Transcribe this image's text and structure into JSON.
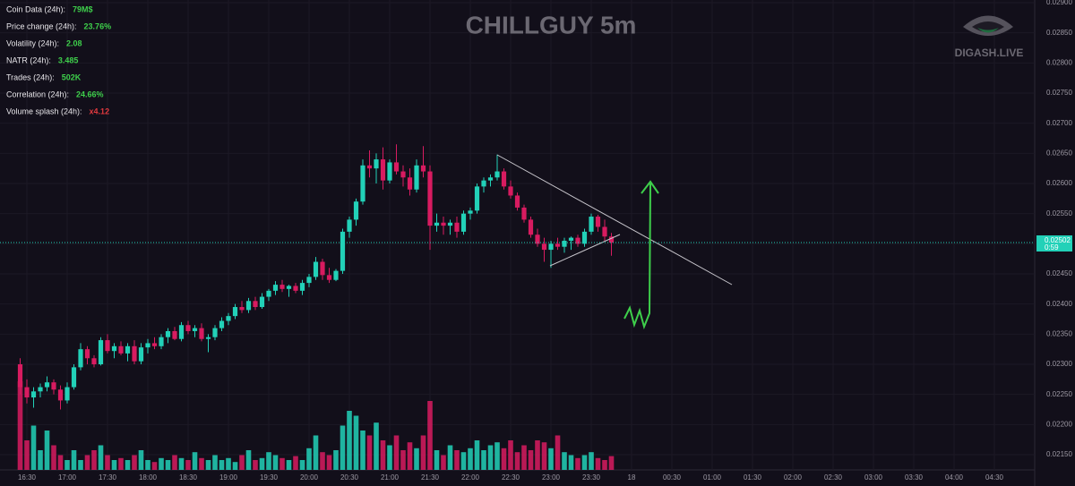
{
  "chart_data": {
    "type": "candlestick",
    "title": "CHILLGUY 5m",
    "brand": "DIGASH.LIVE",
    "stats": [
      {
        "label": "Coin Data (24h):",
        "value": "79M$",
        "color": "#3ecf4b"
      },
      {
        "label": "Price change (24h):",
        "value": "23.76%",
        "color": "#3ecf4b"
      },
      {
        "label": "Volatility (24h):",
        "value": "2.08",
        "color": "#3ecf4b"
      },
      {
        "label": "NATR (24h):",
        "value": "3.485",
        "color": "#3ecf4b"
      },
      {
        "label": "Trades (24h):",
        "value": "502K",
        "color": "#3ecf4b"
      },
      {
        "label": "Correlation (24h):",
        "value": "24.66%",
        "color": "#3ecf4b"
      },
      {
        "label": "Volume splash (24h):",
        "value": "x4.12",
        "color": "#e0393e"
      }
    ],
    "up_color": "#22d1b8",
    "down_color": "#d81b60",
    "x": [
      "16:25",
      "16:30",
      "16:35",
      "16:40",
      "16:45",
      "16:50",
      "16:55",
      "17:00",
      "17:05",
      "17:10",
      "17:15",
      "17:20",
      "17:25",
      "17:30",
      "17:35",
      "17:40",
      "17:45",
      "17:50",
      "17:55",
      "18:00",
      "18:05",
      "18:10",
      "18:15",
      "18:20",
      "18:25",
      "18:30",
      "18:35",
      "18:40",
      "18:45",
      "18:50",
      "18:55",
      "19:00",
      "19:05",
      "19:10",
      "19:15",
      "19:20",
      "19:25",
      "19:30",
      "19:35",
      "19:40",
      "19:45",
      "19:50",
      "19:55",
      "20:00",
      "20:05",
      "20:10",
      "20:15",
      "20:20",
      "20:25",
      "20:30",
      "20:35",
      "20:40",
      "20:45",
      "20:50",
      "20:55",
      "21:00",
      "21:05",
      "21:10",
      "21:15",
      "21:20",
      "21:25",
      "21:30",
      "21:35",
      "21:40",
      "21:45",
      "21:50",
      "21:55",
      "22:00",
      "22:05",
      "22:10",
      "22:15",
      "22:20",
      "22:25",
      "22:30",
      "22:35",
      "22:40",
      "22:45",
      "22:50",
      "22:55",
      "23:00",
      "23:05",
      "23:10",
      "23:15",
      "23:20",
      "23:25",
      "23:30",
      "23:35",
      "23:40",
      "23:45"
    ],
    "candles": [
      [
        0.023,
        0.0231,
        0.0225,
        0.02262
      ],
      [
        0.02262,
        0.02275,
        0.02235,
        0.02245
      ],
      [
        0.02245,
        0.02262,
        0.02228,
        0.02255
      ],
      [
        0.02255,
        0.02268,
        0.02245,
        0.02262
      ],
      [
        0.02262,
        0.0228,
        0.02255,
        0.0227
      ],
      [
        0.0227,
        0.02275,
        0.0225,
        0.02258
      ],
      [
        0.02258,
        0.02265,
        0.02225,
        0.0224
      ],
      [
        0.0224,
        0.0227,
        0.02235,
        0.02262
      ],
      [
        0.02262,
        0.023,
        0.02258,
        0.02295
      ],
      [
        0.02295,
        0.02335,
        0.0229,
        0.02325
      ],
      [
        0.02325,
        0.0233,
        0.023,
        0.0231
      ],
      [
        0.0231,
        0.02315,
        0.02295,
        0.023
      ],
      [
        0.023,
        0.02345,
        0.02298,
        0.0234
      ],
      [
        0.0234,
        0.0235,
        0.02318,
        0.02322
      ],
      [
        0.02322,
        0.02335,
        0.0231,
        0.0233
      ],
      [
        0.0233,
        0.02338,
        0.02315,
        0.02318
      ],
      [
        0.02318,
        0.02335,
        0.02305,
        0.0233
      ],
      [
        0.0233,
        0.0234,
        0.023,
        0.02305
      ],
      [
        0.02305,
        0.02335,
        0.023,
        0.02328
      ],
      [
        0.02328,
        0.02342,
        0.02318,
        0.02335
      ],
      [
        0.02335,
        0.02345,
        0.02325,
        0.0233
      ],
      [
        0.0233,
        0.0235,
        0.02325,
        0.02345
      ],
      [
        0.02345,
        0.0236,
        0.02335,
        0.02355
      ],
      [
        0.02355,
        0.02362,
        0.0234,
        0.02342
      ],
      [
        0.02342,
        0.0237,
        0.02338,
        0.02365
      ],
      [
        0.02365,
        0.02372,
        0.0235,
        0.02355
      ],
      [
        0.02355,
        0.02365,
        0.02345,
        0.0236
      ],
      [
        0.0236,
        0.02368,
        0.02338,
        0.02342
      ],
      [
        0.02342,
        0.0235,
        0.0232,
        0.02345
      ],
      [
        0.02345,
        0.02365,
        0.0234,
        0.0236
      ],
      [
        0.0236,
        0.02378,
        0.02355,
        0.02372
      ],
      [
        0.02372,
        0.02385,
        0.02365,
        0.0238
      ],
      [
        0.0238,
        0.024,
        0.02375,
        0.02395
      ],
      [
        0.02395,
        0.02405,
        0.02385,
        0.0239
      ],
      [
        0.0239,
        0.0241,
        0.02385,
        0.02405
      ],
      [
        0.02405,
        0.02412,
        0.0239,
        0.02395
      ],
      [
        0.02395,
        0.02418,
        0.02392,
        0.02412
      ],
      [
        0.02412,
        0.02425,
        0.02405,
        0.02422
      ],
      [
        0.02422,
        0.02438,
        0.02415,
        0.02432
      ],
      [
        0.02432,
        0.0244,
        0.0242,
        0.02425
      ],
      [
        0.02425,
        0.02432,
        0.02412,
        0.0243
      ],
      [
        0.0243,
        0.02435,
        0.02418,
        0.02422
      ],
      [
        0.02422,
        0.0244,
        0.02415,
        0.02435
      ],
      [
        0.02435,
        0.0245,
        0.02428,
        0.02445
      ],
      [
        0.02445,
        0.02478,
        0.0244,
        0.0247
      ],
      [
        0.0247,
        0.02475,
        0.0244,
        0.02448
      ],
      [
        0.02448,
        0.0246,
        0.02435,
        0.0244
      ],
      [
        0.0244,
        0.02458,
        0.02438,
        0.02455
      ],
      [
        0.02455,
        0.02525,
        0.0245,
        0.0252
      ],
      [
        0.0252,
        0.02545,
        0.0251,
        0.0254
      ],
      [
        0.0254,
        0.02575,
        0.0253,
        0.0257
      ],
      [
        0.0257,
        0.0264,
        0.02565,
        0.0263
      ],
      [
        0.0263,
        0.02655,
        0.0261,
        0.02625
      ],
      [
        0.02625,
        0.0265,
        0.026,
        0.0264
      ],
      [
        0.0264,
        0.0266,
        0.0259,
        0.02605
      ],
      [
        0.02605,
        0.0264,
        0.026,
        0.02635
      ],
      [
        0.02635,
        0.02665,
        0.02615,
        0.0262
      ],
      [
        0.0262,
        0.0263,
        0.02595,
        0.0261
      ],
      [
        0.0261,
        0.02625,
        0.0258,
        0.0259
      ],
      [
        0.0259,
        0.0264,
        0.02585,
        0.0263
      ],
      [
        0.0263,
        0.02662,
        0.0261,
        0.0262
      ],
      [
        0.0262,
        0.0263,
        0.0249,
        0.0253
      ],
      [
        0.0253,
        0.0255,
        0.0252,
        0.02535
      ],
      [
        0.02535,
        0.02545,
        0.02515,
        0.0253
      ],
      [
        0.0253,
        0.0254,
        0.02515,
        0.02535
      ],
      [
        0.02535,
        0.02545,
        0.0251,
        0.0252
      ],
      [
        0.0252,
        0.02555,
        0.02515,
        0.0255
      ],
      [
        0.0255,
        0.0256,
        0.0254,
        0.02555
      ],
      [
        0.02555,
        0.026,
        0.0255,
        0.02595
      ],
      [
        0.02595,
        0.0261,
        0.02585,
        0.02605
      ],
      [
        0.02605,
        0.02615,
        0.02595,
        0.0261
      ],
      [
        0.0261,
        0.02648,
        0.02605,
        0.0262
      ],
      [
        0.0262,
        0.02625,
        0.0259,
        0.02595
      ],
      [
        0.02595,
        0.02605,
        0.02575,
        0.0258
      ],
      [
        0.0258,
        0.02585,
        0.02555,
        0.0256
      ],
      [
        0.0256,
        0.02565,
        0.02535,
        0.0254
      ],
      [
        0.0254,
        0.02545,
        0.0251,
        0.02515
      ],
      [
        0.02515,
        0.02525,
        0.02495,
        0.025
      ],
      [
        0.025,
        0.0251,
        0.0247,
        0.0249
      ],
      [
        0.0249,
        0.02505,
        0.0246,
        0.025
      ],
      [
        0.025,
        0.0251,
        0.0249,
        0.02495
      ],
      [
        0.02495,
        0.0251,
        0.02485,
        0.02505
      ],
      [
        0.02505,
        0.02512,
        0.0249,
        0.0251
      ],
      [
        0.0251,
        0.02515,
        0.02495,
        0.025
      ],
      [
        0.025,
        0.02525,
        0.02495,
        0.0252
      ],
      [
        0.0252,
        0.0255,
        0.02515,
        0.02545
      ],
      [
        0.02545,
        0.02548,
        0.0252,
        0.02528
      ],
      [
        0.02528,
        0.0254,
        0.02505,
        0.02512
      ],
      [
        0.02512,
        0.02518,
        0.0248,
        0.02502
      ]
    ],
    "volumes": [
      90,
      30,
      45,
      20,
      40,
      25,
      15,
      10,
      20,
      10,
      15,
      20,
      25,
      15,
      10,
      12,
      10,
      15,
      20,
      10,
      8,
      12,
      10,
      15,
      12,
      10,
      18,
      12,
      10,
      15,
      10,
      12,
      8,
      15,
      20,
      10,
      12,
      18,
      15,
      12,
      10,
      14,
      10,
      22,
      35,
      18,
      15,
      20,
      45,
      60,
      55,
      40,
      35,
      48,
      30,
      25,
      35,
      20,
      28,
      22,
      35,
      70,
      20,
      15,
      25,
      20,
      18,
      22,
      30,
      20,
      25,
      28,
      22,
      30,
      18,
      25,
      20,
      30,
      28,
      22,
      35,
      18,
      15,
      12,
      15,
      18,
      12,
      10,
      14
    ],
    "volume_range": [
      0,
      100
    ],
    "xlim": [
      "16:10",
      "05:00"
    ],
    "xticks": [
      "16:30",
      "17:00",
      "17:30",
      "18:00",
      "18:30",
      "19:00",
      "19:30",
      "20:00",
      "20:30",
      "21:00",
      "21:30",
      "22:00",
      "22:30",
      "23:00",
      "23:30",
      {
        "value": "00:00",
        "label": "18"
      },
      "00:30",
      "01:00",
      "01:30",
      "02:00",
      "02:30",
      "03:00",
      "03:30",
      "04:00",
      "04:30"
    ],
    "ylim": [
      0.0215,
      0.029
    ],
    "yticks": [
      {
        "value": 0.0215,
        "label": "0.02150"
      },
      {
        "value": 0.022,
        "label": "0.02200"
      },
      {
        "value": 0.0225,
        "label": "0.02250"
      },
      {
        "value": 0.023,
        "label": "0.02300"
      },
      {
        "value": 0.0235,
        "label": "0.02350"
      },
      {
        "value": 0.024,
        "label": "0.02400"
      },
      {
        "value": 0.0245,
        "label": "0.02450"
      },
      {
        "value": 0.025,
        "label": "0.02500"
      },
      {
        "value": 0.0255,
        "label": "0.02550"
      },
      {
        "value": 0.026,
        "label": "0.02600"
      },
      {
        "value": 0.0265,
        "label": "0.02650"
      },
      {
        "value": 0.027,
        "label": "0.02700"
      },
      {
        "value": 0.0275,
        "label": "0.02750"
      },
      {
        "value": 0.028,
        "label": "0.02800"
      },
      {
        "value": 0.0285,
        "label": "0.02850"
      },
      {
        "value": 0.029,
        "label": "0.02900"
      }
    ],
    "grid": true,
    "last_price": 0.02502,
    "countdown": "0:59"
  }
}
